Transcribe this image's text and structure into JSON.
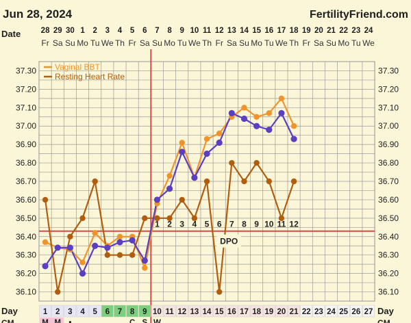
{
  "header": {
    "date": "Jun 28, 2024",
    "site": "FertilityFriend.com",
    "date_label": "Date",
    "day_label": "Day",
    "cm_label": "CM"
  },
  "colors": {
    "background": "#fbf6d8",
    "grid": "#9a9a9a",
    "bbt": "#f0932b",
    "rhr": "#b05e0e",
    "overlay": "#5a3fc0",
    "coverline": "#d44a4a",
    "ovulation_line": "#d44a4a",
    "day_fertile": "#7ccf7c",
    "day_luteal": "#f6e4e0",
    "day_follicular": "#e6e6f4",
    "day_plain": "#f4f4f4"
  },
  "chart_data": {
    "type": "line",
    "dates": [
      "28",
      "29",
      "30",
      "1",
      "2",
      "3",
      "4",
      "5",
      "6",
      "7",
      "8",
      "9",
      "10",
      "11",
      "12",
      "13",
      "14",
      "15",
      "16",
      "17",
      "18",
      "19",
      "20",
      "21",
      "22",
      "23",
      "24"
    ],
    "weekdays": [
      "Fr",
      "Sa",
      "Su",
      "Mo",
      "Tu",
      "We",
      "Th",
      "Fr",
      "Sa",
      "Su",
      "Mo",
      "Tu",
      "We",
      "Th",
      "Fr",
      "Sa",
      "Su",
      "Mo",
      "Tu",
      "We",
      "Th",
      "Fr",
      "Sa",
      "Su",
      "Mo",
      "Tu",
      "We"
    ],
    "days": [
      1,
      2,
      3,
      4,
      5,
      6,
      7,
      8,
      9,
      10,
      11,
      12,
      13,
      14,
      15,
      16,
      17,
      18,
      19,
      20,
      21,
      22,
      23,
      24,
      25,
      26,
      27
    ],
    "cm_row": [
      "M",
      "M",
      "•",
      "",
      "",
      "",
      "",
      "C",
      "S",
      "W",
      "",
      "",
      "",
      "",
      "",
      "",
      "",
      "",
      "",
      "",
      "",
      "",
      "",
      "",
      "",
      "",
      ""
    ],
    "ylim": [
      36.05,
      37.35
    ],
    "yticks": [
      "37.30",
      "37.20",
      "37.10",
      "37.00",
      "36.90",
      "36.80",
      "36.70",
      "36.60",
      "36.50",
      "36.40",
      "36.30",
      "36.20",
      "36.10"
    ],
    "series": [
      {
        "name": "Vaginal BBT",
        "color": "#f0932b",
        "values": [
          36.37,
          36.34,
          36.33,
          36.26,
          36.42,
          36.35,
          36.4,
          36.4,
          36.23,
          36.58,
          36.73,
          36.91,
          36.72,
          36.93,
          36.96,
          37.05,
          37.1,
          37.05,
          37.07,
          37.15,
          37.0,
          null,
          null,
          null,
          null,
          null,
          null
        ]
      },
      {
        "name": "Resting Heart Rate",
        "color": "#b05e0e",
        "values": [
          36.6,
          36.1,
          36.4,
          36.5,
          36.7,
          36.3,
          36.3,
          36.3,
          36.5,
          36.5,
          36.5,
          36.6,
          36.5,
          36.7,
          36.1,
          36.8,
          36.7,
          36.8,
          36.7,
          36.5,
          36.7,
          null,
          null,
          null,
          null,
          null,
          null
        ]
      },
      {
        "color": "#5a3fc0",
        "values": [
          36.24,
          36.34,
          36.34,
          36.2,
          36.35,
          36.34,
          36.37,
          36.38,
          36.27,
          36.6,
          36.66,
          36.86,
          36.72,
          36.85,
          36.91,
          37.07,
          37.04,
          37.0,
          36.98,
          37.07,
          36.93,
          null,
          null,
          null,
          null,
          null,
          null
        ]
      }
    ],
    "coverline": 36.43,
    "ovulation_day": 9,
    "dpo_labels": [
      "1",
      "2",
      "3",
      "4",
      "5",
      "6",
      "7",
      "8",
      "9",
      "10",
      "11",
      "12"
    ],
    "dpo_text": "DPO"
  }
}
